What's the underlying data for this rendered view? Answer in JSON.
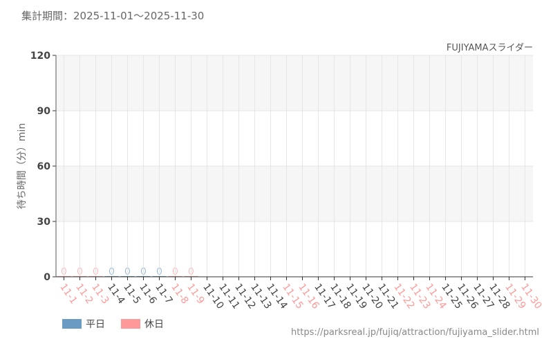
{
  "period_label": "集計期間：2025-11-01～2025-11-30",
  "source_url": "https://parksreal.jp/fujiq/attraction/fujiyama_slider.html",
  "chart_data": {
    "type": "bar",
    "title": "FUJIYAMAスライダー",
    "ylabel": "待ち時間（分）min",
    "xlabel": "",
    "ylim": [
      0,
      120
    ],
    "yticks": [
      0,
      30,
      60,
      90,
      120
    ],
    "grid": true,
    "legend_placement": "bottom-left",
    "categories": [
      "11-1",
      "11-2",
      "11-3",
      "11-4",
      "11-5",
      "11-6",
      "11-7",
      "11-8",
      "11-9",
      "11-10",
      "11-11",
      "11-12",
      "11-13",
      "11-14",
      "11-15",
      "11-16",
      "11-17",
      "11-18",
      "11-19",
      "11-20",
      "11-21",
      "11-22",
      "11-23",
      "11-24",
      "11-25",
      "11-26",
      "11-27",
      "11-28",
      "11-29",
      "11-30"
    ],
    "holiday": [
      true,
      true,
      true,
      false,
      false,
      false,
      false,
      true,
      true,
      false,
      false,
      false,
      false,
      false,
      true,
      true,
      false,
      false,
      false,
      false,
      false,
      true,
      true,
      true,
      false,
      false,
      false,
      false,
      true,
      true
    ],
    "values": [
      0,
      0,
      0,
      0,
      0,
      0,
      0,
      0,
      0,
      null,
      null,
      null,
      null,
      null,
      null,
      null,
      null,
      null,
      null,
      null,
      null,
      null,
      null,
      null,
      null,
      null,
      null,
      null,
      null,
      null
    ],
    "series": [
      {
        "name": "平日",
        "color": "#6a9bc3"
      },
      {
        "name": "休日",
        "color": "#ff9999"
      }
    ]
  }
}
